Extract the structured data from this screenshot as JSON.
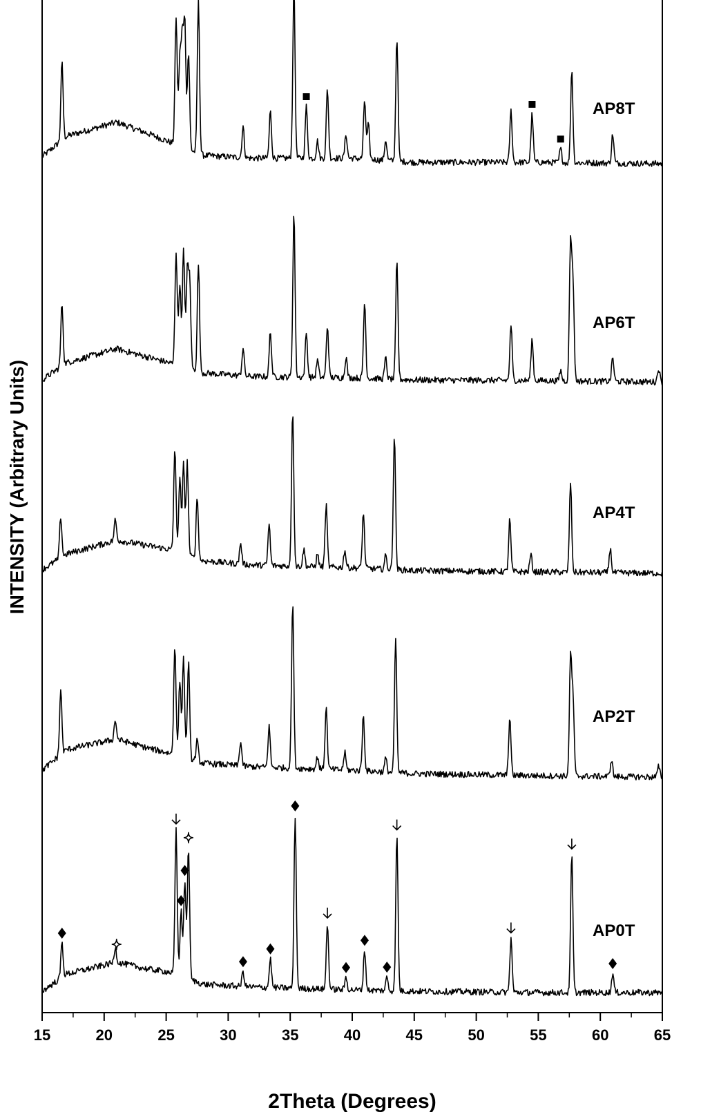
{
  "chart_data": {
    "type": "line",
    "title": "",
    "xlabel": "2Theta (Degrees)",
    "ylabel": "INTENSITY (Arbitrary Units)",
    "xlim": [
      15,
      65
    ],
    "xticks": [
      15,
      20,
      25,
      30,
      35,
      40,
      45,
      50,
      55,
      60,
      65
    ],
    "grid": false,
    "legend": "none",
    "series": [
      {
        "name": "AP8T",
        "baseline_profile": [
          [
            15,
            28
          ],
          [
            17,
            58
          ],
          [
            21,
            78
          ],
          [
            23.5,
            62
          ],
          [
            25.2,
            50
          ],
          [
            28,
            30
          ],
          [
            32,
            26
          ],
          [
            40,
            26
          ],
          [
            45,
            20
          ],
          [
            55,
            20
          ],
          [
            65,
            18
          ]
        ],
        "peaks": [
          [
            16.6,
            112
          ],
          [
            25.8,
            185
          ],
          [
            26.1,
            125
          ],
          [
            26.3,
            150
          ],
          [
            26.5,
            180
          ],
          [
            26.8,
            140
          ],
          [
            27.6,
            220
          ],
          [
            31.2,
            45
          ],
          [
            33.4,
            68
          ],
          [
            35.3,
            250
          ],
          [
            36.3,
            75
          ],
          [
            37.2,
            25
          ],
          [
            38,
            100
          ],
          [
            39.5,
            35
          ],
          [
            41,
            85
          ],
          [
            41.3,
            50
          ],
          [
            42.7,
            30
          ],
          [
            43.6,
            180
          ],
          [
            52.8,
            75
          ],
          [
            54.5,
            70
          ],
          [
            56.8,
            20
          ],
          [
            57.7,
            135
          ],
          [
            61,
            42
          ]
        ],
        "markers": [
          {
            "symbol": "square",
            "x": 27.6
          },
          {
            "symbol": "square",
            "x": 36.3
          },
          {
            "symbol": "square",
            "x": 54.5
          },
          {
            "symbol": "square",
            "x": 56.8
          }
        ]
      },
      {
        "name": "AP6T",
        "baseline_profile": [
          [
            15,
            15
          ],
          [
            17,
            40
          ],
          [
            21,
            60
          ],
          [
            23.5,
            48
          ],
          [
            25.2,
            40
          ],
          [
            28,
            25
          ],
          [
            32,
            20
          ],
          [
            40,
            18
          ],
          [
            45,
            15
          ],
          [
            55,
            14
          ],
          [
            65,
            12
          ]
        ],
        "peaks": [
          [
            16.6,
            90
          ],
          [
            25.8,
            165
          ],
          [
            26.1,
            120
          ],
          [
            26.4,
            170
          ],
          [
            26.7,
            140
          ],
          [
            26.9,
            125
          ],
          [
            27.6,
            155
          ],
          [
            31.2,
            40
          ],
          [
            33.4,
            65
          ],
          [
            35.3,
            238
          ],
          [
            36.3,
            65
          ],
          [
            37.2,
            25
          ],
          [
            38,
            75
          ],
          [
            39.5,
            30
          ],
          [
            41,
            110
          ],
          [
            42.7,
            30
          ],
          [
            43.6,
            170
          ],
          [
            52.8,
            80
          ],
          [
            54.5,
            60
          ],
          [
            56.8,
            15
          ],
          [
            57.6,
            200
          ],
          [
            57.8,
            140
          ],
          [
            61,
            35
          ],
          [
            64.7,
            20
          ]
        ],
        "markers": []
      },
      {
        "name": "AP4T",
        "baseline_profile": [
          [
            15,
            15
          ],
          [
            17,
            38
          ],
          [
            21,
            58
          ],
          [
            23.5,
            50
          ],
          [
            25.2,
            45
          ],
          [
            28,
            28
          ],
          [
            32,
            22
          ],
          [
            40,
            18
          ],
          [
            45,
            14
          ],
          [
            55,
            12
          ],
          [
            65,
            10
          ]
        ],
        "peaks": [
          [
            16.5,
            60
          ],
          [
            20.9,
            30
          ],
          [
            25.7,
            150
          ],
          [
            26.1,
            110
          ],
          [
            26.4,
            130
          ],
          [
            26.7,
            135
          ],
          [
            27.5,
            90
          ],
          [
            31,
            30
          ],
          [
            33.3,
            60
          ],
          [
            35.2,
            225
          ],
          [
            36.1,
            25
          ],
          [
            37.2,
            18
          ],
          [
            37.9,
            90
          ],
          [
            39.4,
            25
          ],
          [
            40.9,
            80
          ],
          [
            42.7,
            20
          ],
          [
            43.4,
            195
          ],
          [
            52.7,
            75
          ],
          [
            54.4,
            25
          ],
          [
            57.6,
            130
          ],
          [
            60.8,
            35
          ]
        ],
        "markers": []
      },
      {
        "name": "AP2T",
        "baseline_profile": [
          [
            15,
            20
          ],
          [
            17,
            50
          ],
          [
            21,
            65
          ],
          [
            23.5,
            52
          ],
          [
            25.2,
            45
          ],
          [
            28,
            30
          ],
          [
            32,
            25
          ],
          [
            40,
            20
          ],
          [
            45,
            15
          ],
          [
            55,
            12
          ],
          [
            65,
            10
          ]
        ],
        "peaks": [
          [
            16.5,
            95
          ],
          [
            20.9,
            28
          ],
          [
            25.7,
            160
          ],
          [
            26.1,
            110
          ],
          [
            26.4,
            145
          ],
          [
            26.8,
            140
          ],
          [
            27.5,
            30
          ],
          [
            31,
            35
          ],
          [
            33.3,
            60
          ],
          [
            35.2,
            240
          ],
          [
            37.2,
            18
          ],
          [
            37.9,
            90
          ],
          [
            39.4,
            25
          ],
          [
            40.9,
            80
          ],
          [
            42.7,
            20
          ],
          [
            43.5,
            195
          ],
          [
            52.7,
            85
          ],
          [
            57.6,
            170
          ],
          [
            57.8,
            110
          ],
          [
            60.9,
            25
          ],
          [
            64.7,
            15
          ]
        ],
        "markers": []
      },
      {
        "name": "AP0T",
        "baseline_profile": [
          [
            15,
            10
          ],
          [
            17,
            35
          ],
          [
            21,
            52
          ],
          [
            23.5,
            42
          ],
          [
            25.2,
            38
          ],
          [
            28,
            20
          ],
          [
            32,
            16
          ],
          [
            40,
            12
          ],
          [
            45,
            10
          ],
          [
            55,
            8
          ],
          [
            65,
            8
          ]
        ],
        "peaks": [
          [
            16.6,
            50
          ],
          [
            20.9,
            22
          ],
          [
            25.8,
            210
          ],
          [
            26.2,
            95
          ],
          [
            26.5,
            140
          ],
          [
            26.8,
            190
          ],
          [
            31.2,
            22
          ],
          [
            33.4,
            42
          ],
          [
            35.4,
            250
          ],
          [
            38,
            95
          ],
          [
            39.5,
            18
          ],
          [
            41,
            58
          ],
          [
            42.8,
            20
          ],
          [
            43.6,
            225
          ],
          [
            52.8,
            78
          ],
          [
            57.7,
            200
          ],
          [
            61,
            28
          ]
        ],
        "markers": [
          {
            "symbol": "diamond-filled",
            "x": 16.6
          },
          {
            "symbol": "diamond-open",
            "x": 21.0
          },
          {
            "symbol": "arrow-down",
            "x": 25.8
          },
          {
            "symbol": "diamond-filled",
            "x": 26.2
          },
          {
            "symbol": "diamond-filled",
            "x": 26.5
          },
          {
            "symbol": "diamond-open",
            "x": 26.8
          },
          {
            "symbol": "diamond-filled",
            "x": 31.2
          },
          {
            "symbol": "diamond-filled",
            "x": 33.4
          },
          {
            "symbol": "diamond-filled",
            "x": 35.4
          },
          {
            "symbol": "arrow-down",
            "x": 38.0
          },
          {
            "symbol": "diamond-filled",
            "x": 39.5
          },
          {
            "symbol": "diamond-filled",
            "x": 41.0
          },
          {
            "symbol": "diamond-filled",
            "x": 42.8
          },
          {
            "symbol": "arrow-down",
            "x": 43.6
          },
          {
            "symbol": "arrow-down",
            "x": 52.8
          },
          {
            "symbol": "arrow-down",
            "x": 57.7
          },
          {
            "symbol": "diamond-filled",
            "x": 61.0
          }
        ]
      }
    ]
  }
}
